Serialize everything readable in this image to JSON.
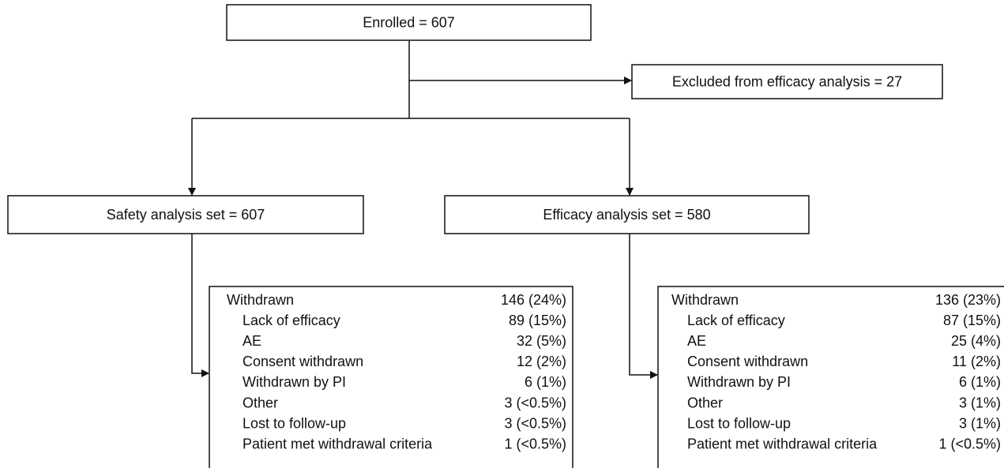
{
  "nodes": [
    {
      "label": "Enrolled = 607"
    },
    {
      "label": "Excluded from efficacy analysis = 27"
    },
    {
      "label": "Safety analysis set = 607"
    },
    {
      "label": "Efficacy analysis set = 580"
    }
  ],
  "withdrawals": [
    {
      "rows": [
        [
          "Withdrawn",
          "146 (24%)"
        ],
        [
          "Lack of efficacy",
          "89 (15%)"
        ],
        [
          "AE",
          "32 (5%)"
        ],
        [
          "Consent withdrawn",
          "12 (2%)"
        ],
        [
          "Withdrawn by PI",
          "6 (1%)"
        ],
        [
          "Other",
          "3 (<0.5%)"
        ],
        [
          "Lost to follow-up",
          "3 (<0.5%)"
        ],
        [
          "Patient met withdrawal criteria",
          "1 (<0.5%)"
        ]
      ]
    },
    {
      "rows": [
        [
          "Withdrawn",
          "136 (23%)"
        ],
        [
          "Lack of efficacy",
          "87 (15%)"
        ],
        [
          "AE",
          "25 (4%)"
        ],
        [
          "Consent withdrawn",
          "11 (2%)"
        ],
        [
          "Withdrawn by PI",
          "6 (1%)"
        ],
        [
          "Other",
          "3 (1%)"
        ],
        [
          "Lost to follow-up",
          "3 (1%)"
        ],
        [
          "Patient met withdrawal criteria",
          "1 (<0.5%)"
        ]
      ]
    }
  ]
}
